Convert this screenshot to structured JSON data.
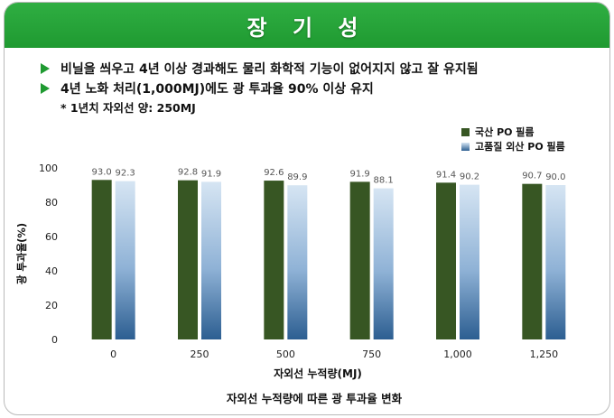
{
  "banner": {
    "title": "장 기 성"
  },
  "bullets": [
    "비닐을 씌우고 4년 이상 경과해도 물리 화학적 기능이 없어지지 않고 잘 유지됨",
    "4년 노화 처리(1,000MJ)에도 광 투과율 90% 이상 유지"
  ],
  "note": "* 1년치 자외선 양: 250MJ",
  "colors": {
    "banner": "#1f9a31",
    "domestic": "#375623",
    "foreign_top": "#d6e5f3",
    "foreign_bottom": "#2c5e91"
  },
  "chart_data": {
    "type": "bar",
    "categories": [
      "0",
      "250",
      "500",
      "750",
      "1,000",
      "1,250"
    ],
    "series": [
      {
        "name": "국산 PO 필름",
        "values": [
          93.0,
          92.8,
          92.6,
          91.9,
          91.4,
          90.7
        ],
        "labels": [
          "93.0",
          "92.8",
          "92.6",
          "91.9",
          "91.4",
          "90.7"
        ]
      },
      {
        "name": "고품질 외산 PO 필름",
        "values": [
          92.3,
          91.9,
          89.9,
          88.1,
          90.2,
          90.0
        ],
        "labels": [
          "92.3",
          "91.9",
          "89.9",
          "88.1",
          "90.2",
          "90.0"
        ]
      }
    ],
    "xlabel": "자외선 누적량(MJ)",
    "ylabel": "광 투과율(%)",
    "ylim": [
      0,
      100
    ],
    "yticks": [
      "0",
      "20",
      "40",
      "60",
      "80",
      "100"
    ],
    "caption": "자외선 누적량에 따른 광 투과율 변화",
    "legend_position": "top-right",
    "grid": false
  }
}
